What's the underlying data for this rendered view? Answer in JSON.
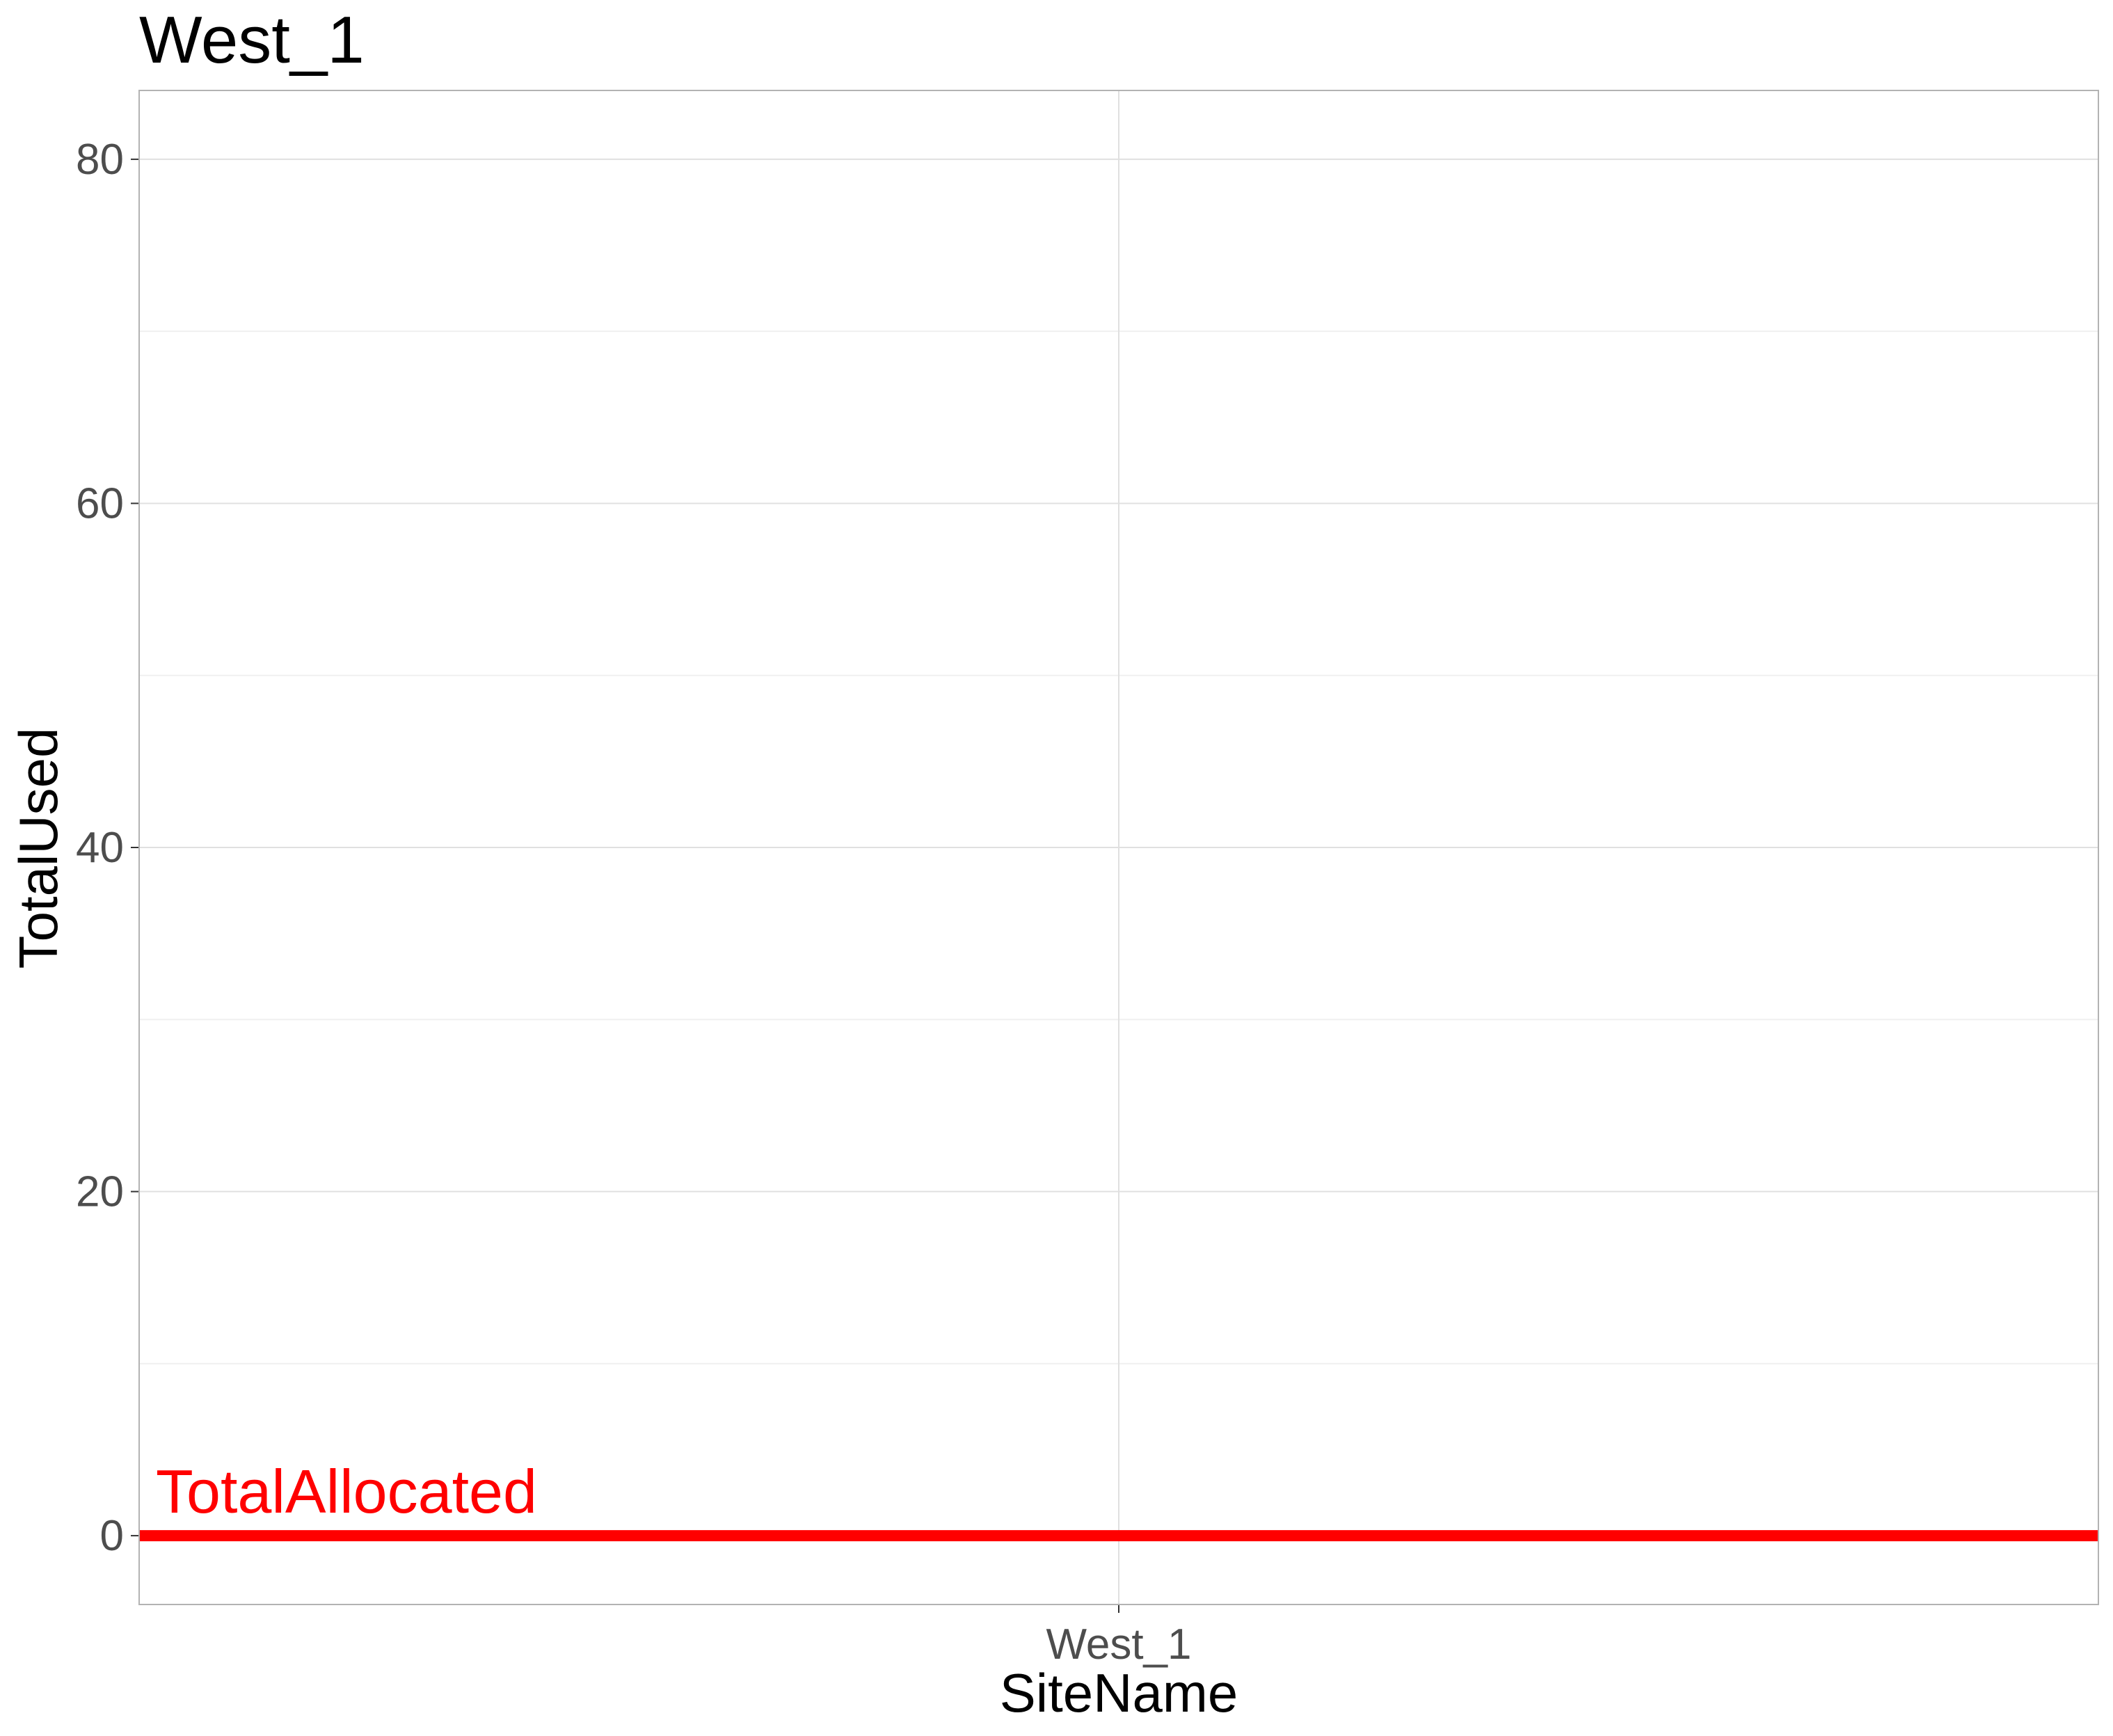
{
  "chart_data": {
    "type": "bar",
    "title": "West_1",
    "xlabel": "SiteName",
    "ylabel": "TotalUsed",
    "categories": [
      "West_1"
    ],
    "values": [
      0
    ],
    "ylim": [
      -4,
      84
    ],
    "yticks": [
      0,
      20,
      40,
      60,
      80
    ],
    "grid": true,
    "legend": "none",
    "reference_line": {
      "label": "TotalAllocated",
      "value": 0,
      "color": "#ff0000"
    },
    "colors": {
      "panel_border": "#b3b3b3",
      "grid_major": "#e0e0e0",
      "grid_minor": "#f0f0f0",
      "tick_text": "#4d4d4d"
    }
  }
}
